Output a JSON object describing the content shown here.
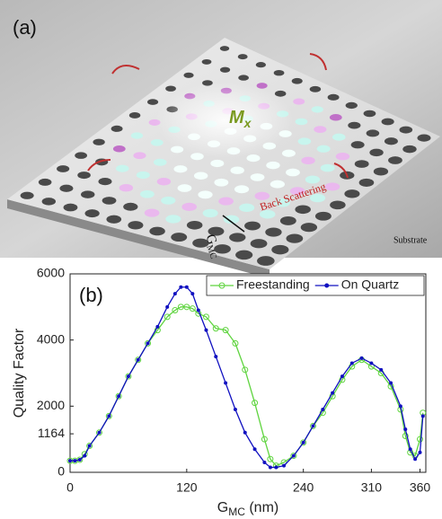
{
  "panel_a": {
    "label": "(a)",
    "back_scattering": "Back Scattering",
    "gap_main": "G",
    "gap_sub": "MC",
    "substrate": "Substrate",
    "mode_main": "M",
    "mode_sub": "x"
  },
  "chart_data": {
    "type": "line",
    "panel_label": "(b)",
    "x_label": {
      "main": "G",
      "sub": "MC",
      "rest": " (nm)"
    },
    "y_label": "Quality Factor",
    "x": [
      0,
      5,
      10,
      15,
      20,
      30,
      40,
      50,
      60,
      70,
      80,
      90,
      100,
      108,
      114,
      120,
      126,
      132,
      140,
      150,
      160,
      170,
      180,
      190,
      200,
      206,
      212,
      220,
      230,
      240,
      250,
      260,
      270,
      280,
      290,
      300,
      310,
      320,
      330,
      340,
      345,
      350,
      355,
      360,
      363
    ],
    "series": [
      {
        "name": "Freestanding",
        "color": "#5fd43f",
        "marker": "open-circle",
        "values": [
          350,
          350,
          380,
          550,
          800,
          1200,
          1700,
          2300,
          2900,
          3400,
          3900,
          4300,
          4700,
          4900,
          5000,
          5000,
          4950,
          4800,
          4700,
          4350,
          4300,
          3900,
          3100,
          2100,
          1000,
          400,
          200,
          300,
          500,
          900,
          1400,
          1800,
          2300,
          2800,
          3200,
          3400,
          3200,
          3000,
          2600,
          1900,
          1100,
          600,
          500,
          1000,
          1800
        ]
      },
      {
        "name": "On Quartz",
        "color": "#1010c0",
        "marker": "dot",
        "values": [
          350,
          350,
          380,
          500,
          800,
          1200,
          1700,
          2300,
          2900,
          3400,
          3900,
          4400,
          5000,
          5400,
          5600,
          5600,
          5400,
          4900,
          4300,
          3500,
          2700,
          1900,
          1200,
          700,
          300,
          150,
          150,
          200,
          500,
          900,
          1400,
          1900,
          2400,
          2900,
          3300,
          3450,
          3300,
          3100,
          2700,
          2000,
          1300,
          700,
          400,
          600,
          1700
        ]
      }
    ],
    "xlim": [
      0,
      366
    ],
    "ylim": [
      0,
      6000
    ],
    "xticks": [
      0,
      120,
      240,
      310,
      360
    ],
    "yticks": [
      0,
      1164,
      2000,
      4000,
      6000
    ],
    "legend": "top-right"
  }
}
